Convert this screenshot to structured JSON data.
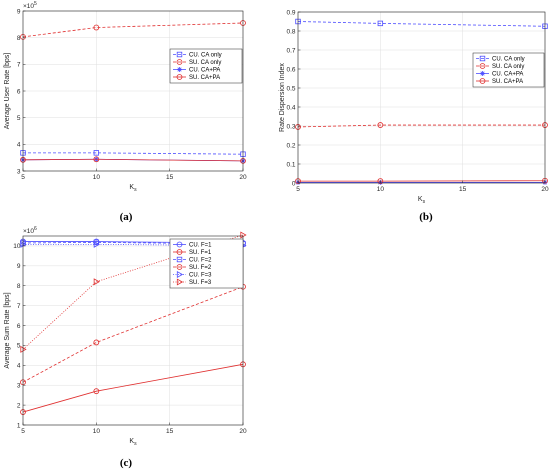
{
  "colors": {
    "cu": "#4d4dff",
    "su": "#e03030",
    "axis": "#262626",
    "grid": "#dfdfdf"
  },
  "chart_data": [
    {
      "type": "line",
      "panel": "(a)",
      "caption": "(a)",
      "xlabel": "K",
      "xlabel_sub": "s",
      "ylabel": "Average User Rate [bps]",
      "y_multiplier": "×10",
      "y_multiplier_exp": "5",
      "xlim": [
        5,
        20
      ],
      "ylim": [
        3,
        9
      ],
      "xticks": [
        5,
        10,
        15,
        20
      ],
      "yticks": [
        3,
        4,
        5,
        6,
        7,
        8,
        9
      ],
      "grid": true,
      "legend_position": "right-center",
      "x": [
        5,
        10,
        20
      ],
      "series": [
        {
          "name": "CU. CA only",
          "color": "#4d4dff",
          "dash": "dashed",
          "marker": "square",
          "values": [
            3.68,
            3.68,
            3.63
          ]
        },
        {
          "name": "SU. CA only",
          "color": "#e03030",
          "dash": "dashed",
          "marker": "circle",
          "values": [
            8.03,
            8.38,
            8.55
          ]
        },
        {
          "name": "CU. CA+PA",
          "color": "#4d4dff",
          "dash": "solid",
          "marker": "star",
          "values": [
            3.42,
            3.44,
            3.38
          ]
        },
        {
          "name": "SU. CA+PA",
          "color": "#e03030",
          "dash": "solid",
          "marker": "circle",
          "values": [
            3.42,
            3.44,
            3.38
          ]
        }
      ]
    },
    {
      "type": "line",
      "panel": "(b)",
      "caption": "(b)",
      "xlabel": "K",
      "xlabel_sub": "s",
      "ylabel": "Rate Dispersion Index",
      "xlim": [
        5,
        20
      ],
      "ylim": [
        0,
        0.9
      ],
      "xticks": [
        5,
        10,
        15,
        20
      ],
      "yticks": [
        0,
        0.1,
        0.2,
        0.3,
        0.4,
        0.5,
        0.6,
        0.7,
        0.8,
        0.9
      ],
      "grid": true,
      "legend_position": "right-center",
      "x": [
        5,
        10,
        20
      ],
      "series": [
        {
          "name": "CU. CA only",
          "color": "#4d4dff",
          "dash": "dashed",
          "marker": "square",
          "values": [
            0.85,
            0.84,
            0.825
          ]
        },
        {
          "name": "SU. CA only",
          "color": "#e03030",
          "dash": "dashed",
          "marker": "circle",
          "values": [
            0.295,
            0.305,
            0.305
          ]
        },
        {
          "name": "CU. CA+PA",
          "color": "#4d4dff",
          "dash": "solid",
          "marker": "star",
          "values": [
            0.003,
            0.003,
            0.003
          ]
        },
        {
          "name": "SU. CA+PA",
          "color": "#e03030",
          "dash": "solid",
          "marker": "circle",
          "values": [
            0.01,
            0.01,
            0.012
          ]
        }
      ]
    },
    {
      "type": "line",
      "panel": "(c)",
      "caption": "(c)",
      "xlabel": "K",
      "xlabel_sub": "s",
      "ylabel": "Average Sum Rate [bps]",
      "y_multiplier": "×10",
      "y_multiplier_exp": "6",
      "xlim": [
        5,
        20
      ],
      "ylim": [
        1,
        10.5
      ],
      "xticks": [
        5,
        10,
        15,
        20
      ],
      "yticks": [
        1,
        2,
        3,
        4,
        5,
        6,
        7,
        8,
        9,
        10
      ],
      "grid": true,
      "legend_position": "top-right",
      "x": [
        5,
        10,
        20
      ],
      "series": [
        {
          "name": "CU. F=1",
          "color": "#4d4dff",
          "dash": "solid",
          "marker": "circle",
          "values": [
            10.22,
            10.22,
            10.15
          ]
        },
        {
          "name": "SU. F=1",
          "color": "#e03030",
          "dash": "solid",
          "marker": "circle",
          "values": [
            1.65,
            2.7,
            4.05
          ]
        },
        {
          "name": "CU. F=2",
          "color": "#4d4dff",
          "dash": "dashed",
          "marker": "square",
          "values": [
            10.15,
            10.18,
            10.1
          ]
        },
        {
          "name": "SU. F=2",
          "color": "#e03030",
          "dash": "dashed",
          "marker": "circle",
          "values": [
            3.15,
            5.15,
            7.95
          ]
        },
        {
          "name": "CU. F=3",
          "color": "#4d4dff",
          "dash": "dotted",
          "marker": "triangle",
          "values": [
            10.08,
            10.08,
            10.02
          ]
        },
        {
          "name": "SU. F=3",
          "color": "#e03030",
          "dash": "dotted",
          "marker": "triangle",
          "values": [
            4.8,
            8.2,
            10.55
          ]
        }
      ]
    }
  ]
}
